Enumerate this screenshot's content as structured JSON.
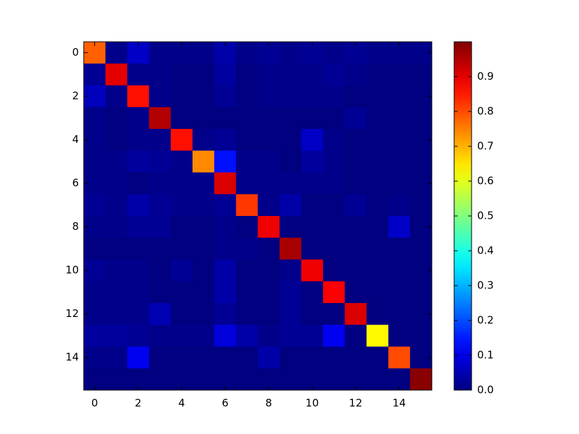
{
  "chart_data": {
    "type": "heatmap",
    "colormap": "jet",
    "x": [
      0,
      1,
      2,
      3,
      4,
      5,
      6,
      7,
      8,
      9,
      10,
      11,
      12,
      13,
      14,
      15
    ],
    "y": [
      0,
      1,
      2,
      3,
      4,
      5,
      6,
      7,
      8,
      9,
      10,
      11,
      12,
      13,
      14,
      15
    ],
    "xlim": [
      -0.5,
      15.5
    ],
    "ylim": [
      15.5,
      -0.5
    ],
    "xticks": [
      0,
      2,
      4,
      6,
      8,
      10,
      12,
      14
    ],
    "yticks": [
      0,
      2,
      4,
      6,
      8,
      10,
      12,
      14
    ],
    "clim": [
      0,
      1
    ],
    "cticks": [
      {
        "value": 0,
        "label": "0.0"
      },
      0.1,
      0.2,
      0.3,
      0.4,
      0.5,
      0.6,
      0.7,
      0.8,
      0.9
    ],
    "z": [
      [
        0.78,
        0.01,
        0.07,
        0.01,
        0.01,
        0.01,
        0.04,
        0.01,
        0.02,
        0.01,
        0.02,
        0.01,
        0.02,
        0.01,
        0.01,
        0.01
      ],
      [
        0.02,
        0.9,
        0.01,
        0.01,
        0,
        0,
        0.03,
        0,
        0.01,
        0.01,
        0.01,
        0.02,
        0.01,
        0,
        0,
        0
      ],
      [
        0.06,
        0.01,
        0.86,
        0.01,
        0,
        0,
        0.02,
        0,
        0.01,
        0.01,
        0.01,
        0.01,
        0,
        0,
        0,
        0
      ],
      [
        0.01,
        0,
        0.01,
        0.95,
        0,
        0,
        0,
        0,
        0,
        0,
        0,
        0,
        0.02,
        0,
        0,
        0
      ],
      [
        0.01,
        0,
        0.01,
        0.01,
        0.86,
        0.01,
        0.02,
        0,
        0,
        0,
        0.07,
        0.01,
        0,
        0,
        0,
        0
      ],
      [
        0.01,
        0.01,
        0.03,
        0.02,
        0.01,
        0.74,
        0.14,
        0.01,
        0.01,
        0,
        0.03,
        0.01,
        0,
        0,
        0,
        0
      ],
      [
        0.01,
        0.01,
        0,
        0.01,
        0.01,
        0.01,
        0.91,
        0.01,
        0.01,
        0.01,
        0.01,
        0.01,
        0,
        0,
        0,
        0
      ],
      [
        0.02,
        0.01,
        0.04,
        0.02,
        0.01,
        0.01,
        0.02,
        0.82,
        0.01,
        0.04,
        0,
        0,
        0.02,
        0,
        0.01,
        0
      ],
      [
        0.01,
        0.01,
        0.02,
        0.02,
        0,
        0,
        0.01,
        0,
        0.89,
        0,
        0,
        0,
        0,
        0,
        0.07,
        0
      ],
      [
        0,
        0,
        0,
        0,
        0,
        0,
        0.01,
        0.01,
        0,
        0.96,
        0,
        0,
        0,
        0,
        0,
        0
      ],
      [
        0.02,
        0.01,
        0.01,
        0,
        0.02,
        0,
        0.04,
        0,
        0,
        0.01,
        0.89,
        0,
        0,
        0,
        0,
        0
      ],
      [
        0.01,
        0.01,
        0.01,
        0,
        0,
        0,
        0.04,
        0,
        0,
        0.02,
        0,
        0.88,
        0,
        0,
        0,
        0
      ],
      [
        0.01,
        0.01,
        0.01,
        0.05,
        0,
        0,
        0.02,
        0,
        0,
        0.02,
        0,
        0,
        0.91,
        0,
        0,
        0
      ],
      [
        0.03,
        0.03,
        0.02,
        0.01,
        0.01,
        0.01,
        0.09,
        0.04,
        0.01,
        0.02,
        0.02,
        0.11,
        0,
        0.63,
        0,
        0
      ],
      [
        0.01,
        0.01,
        0.11,
        0,
        0,
        0,
        0,
        0,
        0.04,
        0,
        0,
        0,
        0,
        0,
        0.8,
        0
      ],
      [
        0,
        0,
        0,
        0,
        0,
        0,
        0,
        0,
        0,
        0,
        0,
        0,
        0,
        0,
        0,
        0.99
      ]
    ]
  }
}
